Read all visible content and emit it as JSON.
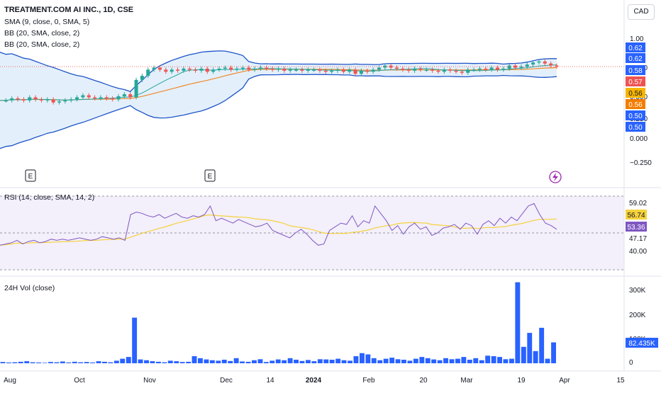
{
  "header": {
    "title": "TREATMENT.COM AI INC., 1D, CSE",
    "currency": "CAD"
  },
  "indicators": {
    "sma": "SMA (9, close, 0, SMA, 5)",
    "bb1": "BB (20, SMA, close, 2)",
    "bb2": "BB (20, SMA, close, 2)",
    "rsi": "RSI (14, close, SMA, 14, 2)",
    "volume": "24H Vol (close)"
  },
  "colors": {
    "up": "#26a69a",
    "down": "#ef5350",
    "bb_band": "#1e54c8",
    "bb_fill": "#e3f0fb",
    "sma": "#f0882a",
    "rsi_line": "#7e57c2",
    "rsi_ma": "#f5d23c",
    "rsi_bg": "#f3effb",
    "volume": "#2962ff"
  },
  "chart_data": [
    {
      "type": "candlestick",
      "name": "price",
      "x_ticks": [
        "Aug",
        "Oct",
        "Nov",
        "Dec",
        "14",
        "2024",
        "Feb",
        "20",
        "Mar",
        "19",
        "Apr",
        "15"
      ],
      "y_ticks": [
        "1.00",
        "0.750",
        "0.500",
        "0.250",
        "0.000",
        "−0.250"
      ],
      "ylim": [
        -0.3,
        1.0
      ],
      "price_labels": [
        {
          "text": "0.62",
          "color": "#2962ff"
        },
        {
          "text": "0.62",
          "color": "#2962ff"
        },
        {
          "text": "0.58",
          "color": "#2962ff"
        },
        {
          "text": "0.57",
          "color": "#ef5350"
        },
        {
          "text": "0.56",
          "color": "#f7b500"
        },
        {
          "text": "0.56",
          "color": "#f57c00"
        },
        {
          "text": "0.50",
          "color": "#2962ff"
        },
        {
          "text": "0.50",
          "color": "#2962ff"
        }
      ],
      "events": [
        "E",
        "E"
      ],
      "closes": [
        0.4,
        0.4,
        0.42,
        0.41,
        0.4,
        0.43,
        0.41,
        0.4,
        0.41,
        0.38,
        0.39,
        0.4,
        0.41,
        0.43,
        0.45,
        0.43,
        0.42,
        0.43,
        0.42,
        0.41,
        0.44,
        0.46,
        0.43,
        0.6,
        0.64,
        0.7,
        0.72,
        0.7,
        0.68,
        0.7,
        0.69,
        0.71,
        0.7,
        0.69,
        0.71,
        0.68,
        0.7,
        0.71,
        0.72,
        0.7,
        0.71,
        0.72,
        0.7,
        0.71,
        0.72,
        0.71,
        0.7,
        0.71,
        0.69,
        0.7,
        0.7,
        0.69,
        0.7,
        0.7,
        0.69,
        0.68,
        0.69,
        0.7,
        0.68,
        0.7,
        0.66,
        0.69,
        0.68,
        0.7,
        0.72,
        0.74,
        0.72,
        0.71,
        0.7,
        0.69,
        0.71,
        0.7,
        0.7,
        0.69,
        0.68,
        0.7,
        0.69,
        0.68,
        0.67,
        0.7,
        0.7,
        0.71,
        0.7,
        0.72,
        0.7,
        0.71,
        0.74,
        0.72,
        0.73,
        0.75,
        0.77,
        0.78,
        0.76,
        0.74,
        0.73
      ]
    },
    {
      "type": "line",
      "name": "rsi",
      "y_ticks": [
        "59.02",
        "47.17",
        "40.00"
      ],
      "levels": [
        70,
        30
      ],
      "ylim": [
        20,
        80
      ],
      "current": [
        {
          "text": "56.74",
          "color": "#f5d23c"
        },
        {
          "text": "53.36",
          "color": "#7e57c2"
        }
      ],
      "values": [
        40,
        41,
        42,
        44,
        41,
        43,
        44,
        42,
        43,
        45,
        44,
        45,
        44,
        45,
        46,
        45,
        44,
        45,
        47,
        46,
        45,
        46,
        44,
        65,
        67,
        66,
        64,
        63,
        65,
        62,
        64,
        66,
        63,
        62,
        64,
        63,
        65,
        72,
        60,
        62,
        60,
        58,
        61,
        59,
        57,
        55,
        56,
        58,
        52,
        50,
        48,
        46,
        50,
        53,
        49,
        44,
        40,
        41,
        52,
        55,
        58,
        57,
        64,
        55,
        60,
        58,
        72,
        66,
        60,
        52,
        56,
        49,
        55,
        58,
        53,
        55,
        48,
        50,
        54,
        55,
        57,
        53,
        58,
        56,
        49,
        57,
        60,
        56,
        62,
        58,
        63,
        60,
        66,
        72,
        74,
        65,
        58,
        56,
        53
      ]
    },
    {
      "type": "bar",
      "name": "volume",
      "y_ticks": [
        "300K",
        "200K",
        "100K",
        "0"
      ],
      "ylim": [
        0,
        330000
      ],
      "current_label": "82.435K",
      "values": [
        5000,
        3000,
        4000,
        6000,
        8000,
        4000,
        3000,
        2000,
        5000,
        4000,
        7000,
        3000,
        6000,
        4000,
        5000,
        3000,
        8000,
        6000,
        4000,
        10000,
        18000,
        25000,
        180000,
        15000,
        12000,
        8000,
        6000,
        4000,
        10000,
        8000,
        5000,
        6000,
        28000,
        20000,
        15000,
        12000,
        10000,
        14000,
        9000,
        20000,
        7000,
        6000,
        12000,
        16000,
        5000,
        10000,
        15000,
        12000,
        20000,
        14000,
        9000,
        13000,
        8000,
        16000,
        15000,
        14000,
        18000,
        12000,
        10000,
        28000,
        40000,
        35000,
        20000,
        12000,
        18000,
        22000,
        16000,
        14000,
        10000,
        18000,
        25000,
        20000,
        15000,
        12000,
        20000,
        16000,
        18000,
        25000,
        14000,
        20000,
        12000,
        30000,
        28000,
        25000,
        16000,
        18000,
        320000,
        65000,
        120000,
        48000,
        140000,
        18000,
        82435
      ]
    }
  ]
}
